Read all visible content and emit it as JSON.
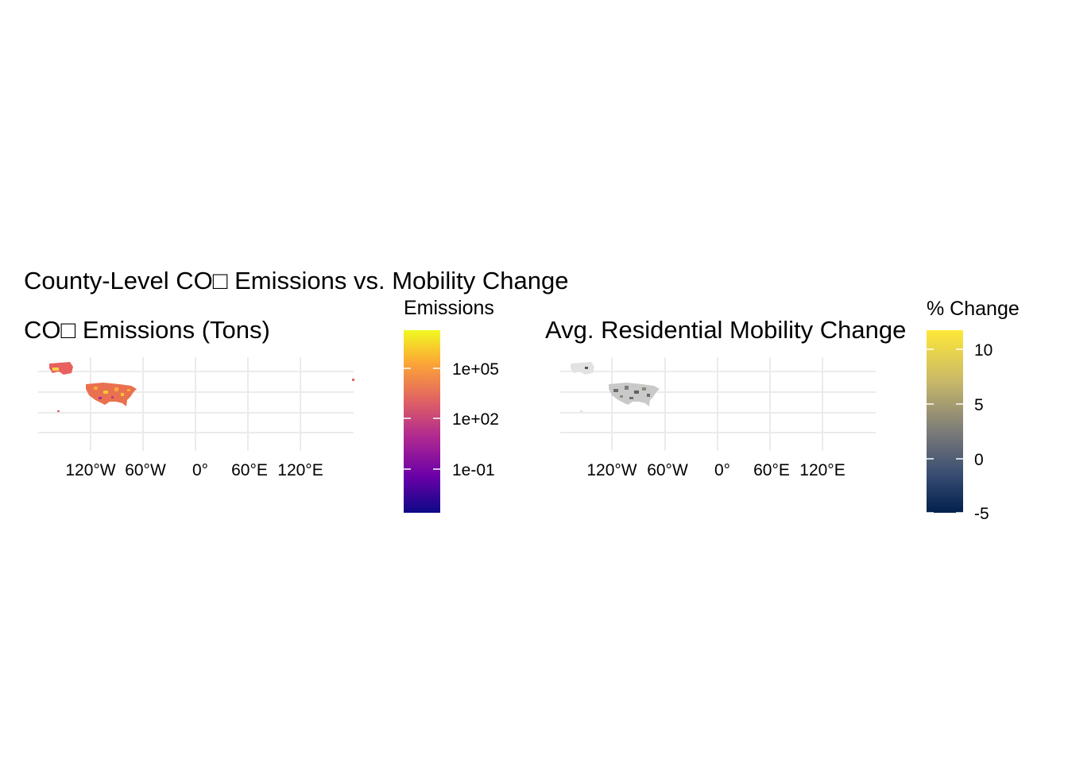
{
  "title": "County-Level CO□ Emissions vs. Mobility Change",
  "panels": [
    {
      "title": "CO□ Emissions (Tons)",
      "x_ticks": [
        "120°W",
        "60°W",
        "0°",
        "60°E",
        "120°E"
      ],
      "legend": {
        "title": "Emissions",
        "scale": "log10",
        "tick_labels": [
          "1e+05",
          "1e+02",
          "1e-01"
        ],
        "colors": [
          "#f0f921",
          "#fca636",
          "#e16462",
          "#b12a90",
          "#6a00a8",
          "#0d0887"
        ]
      }
    },
    {
      "title": "Avg. Residential Mobility Change",
      "x_ticks": [
        "120°W",
        "60°W",
        "0°",
        "60°E",
        "120°E"
      ],
      "legend": {
        "title": "% Change",
        "tick_labels": [
          "10",
          "5",
          "0",
          "-5"
        ],
        "colors": [
          "#fee838",
          "#c9b869",
          "#7d7c78",
          "#4a5d7a",
          "#00204d"
        ]
      }
    }
  ]
}
